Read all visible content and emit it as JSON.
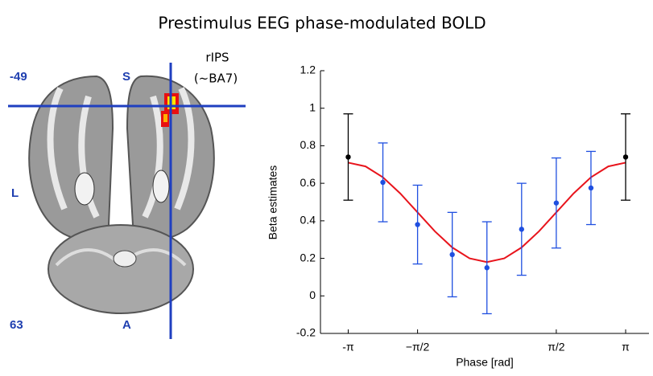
{
  "title": "Prestimulus EEG phase-modulated BOLD",
  "brain_panel": {
    "labels": [
      "-49",
      "S",
      "L",
      "63",
      "A"
    ],
    "region": "rIPS",
    "region_note": "(~BA7)"
  },
  "chart_data": {
    "type": "errorbar",
    "xlabel": "Phase [rad]",
    "ylabel": "Beta estimates",
    "xlim": [
      -3.77,
      3.67
    ],
    "ylim": [
      -0.2,
      1.2
    ],
    "xticks": [
      {
        "value": -3.1416,
        "label": "-π"
      },
      {
        "value": -1.5708,
        "label": "−π/2"
      },
      {
        "value": 1.5708,
        "label": "π/2"
      },
      {
        "value": 3.1416,
        "label": "π"
      }
    ],
    "yticks": [
      -0.2,
      0,
      0.2,
      0.4,
      0.6,
      0.8,
      1,
      1.2
    ],
    "series": [
      {
        "kind": "line",
        "color": "#e8141c",
        "x": [
          -3.1416,
          -2.7489,
          -2.3562,
          -1.9635,
          -1.5708,
          -1.1781,
          -0.7854,
          -0.3927,
          0,
          0.3927,
          0.7854,
          1.1781,
          1.5708,
          1.9635,
          2.3562,
          2.7489,
          3.1416
        ],
        "values": [
          0.71,
          0.69,
          0.632,
          0.546,
          0.445,
          0.344,
          0.258,
          0.2,
          0.18,
          0.2,
          0.258,
          0.344,
          0.445,
          0.546,
          0.632,
          0.69,
          0.71
        ]
      },
      {
        "kind": "points",
        "colors": [
          "#000000",
          "#1f4fe0",
          "#1f4fe0",
          "#1f4fe0",
          "#1f4fe0",
          "#1f4fe0",
          "#1f4fe0",
          "#1f4fe0",
          "#000000"
        ],
        "x": [
          -3.1416,
          -2.3562,
          -1.5708,
          -0.7854,
          0,
          0.7854,
          1.5708,
          2.3562,
          3.1416
        ],
        "values": [
          0.74,
          0.605,
          0.38,
          0.22,
          0.15,
          0.355,
          0.495,
          0.575,
          0.74
        ],
        "errors": [
          0.23,
          0.21,
          0.21,
          0.225,
          0.245,
          0.245,
          0.24,
          0.195,
          0.23
        ]
      }
    ]
  }
}
